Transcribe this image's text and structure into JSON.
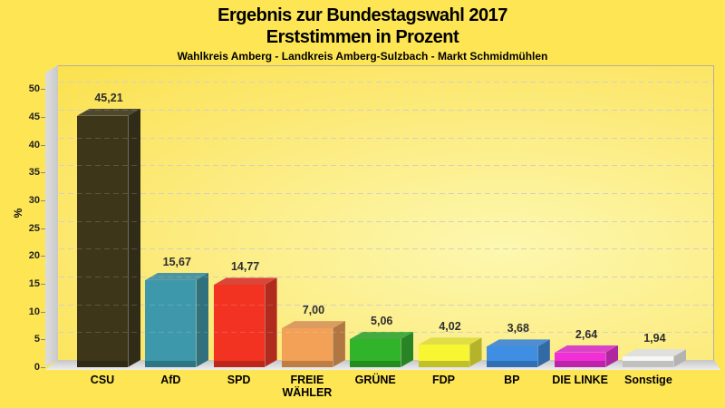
{
  "page": {
    "title_line1": "Ergebnis zur Bundestagswahl 2017",
    "title_line2": "Erststimmen in Prozent",
    "subtitle": "Wahlkreis Amberg - Landkreis Amberg-Sulzbach - Markt Schmidmühlen"
  },
  "chart_data": {
    "type": "bar",
    "title": "Ergebnis zur Bundestagswahl 2017",
    "subtitle": "Erststimmen in Prozent",
    "caption": "Wahlkreis Amberg - Landkreis Amberg-Sulzbach - Markt Schmidmühlen",
    "ylabel": "%",
    "ylim": [
      0,
      50
    ],
    "yticks": [
      0,
      5,
      10,
      15,
      20,
      25,
      30,
      35,
      40,
      45,
      50
    ],
    "grid": true,
    "legend": false,
    "categories": [
      "CSU",
      "AfD",
      "SPD",
      "FREIE WÄHLER",
      "GRÜNE",
      "FDP",
      "BP",
      "DIE LINKE",
      "Sonstige"
    ],
    "label_lines": [
      [
        "CSU"
      ],
      [
        "AfD"
      ],
      [
        "SPD"
      ],
      [
        "FREIE",
        "WÄHLER"
      ],
      [
        "GRÜNE"
      ],
      [
        "FDP"
      ],
      [
        "BP"
      ],
      [
        "DIE LINKE"
      ],
      [
        "Sonstige"
      ]
    ],
    "values": [
      45.21,
      15.67,
      14.77,
      7.0,
      5.06,
      4.02,
      3.68,
      2.64,
      1.94
    ],
    "value_labels": [
      "45,21",
      "15,67",
      "14,77",
      "7,00",
      "5,06",
      "4,02",
      "3,68",
      "2,64",
      "1,94"
    ],
    "bar_colors": [
      "#3d3619",
      "#3c98aa",
      "#f23322",
      "#f2a157",
      "#30b42a",
      "#f8f633",
      "#3e8fe4",
      "#f12fd8",
      "#f7f7f5"
    ]
  },
  "colors": {
    "page_background": "#fde554",
    "plot_inner": "#fdf8b0",
    "plot_outer": "#fbe14e",
    "wall": "#d6d6d6",
    "floor": "#cccccc",
    "gridline": "#cdc7b8",
    "title_text": "#000000",
    "value_label_text": "#2e2e2e"
  }
}
